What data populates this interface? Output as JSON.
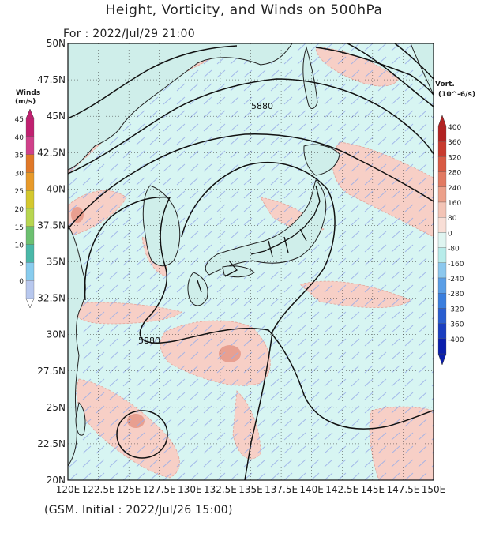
{
  "title": "Height, Vorticity, and Winds on 500hPa",
  "valid_time": "For : 2022/Jul/29 21:00",
  "initial_time": "(GSM. Initial : 2022/Jul/26 15:00)",
  "lat_labels": [
    "50N",
    "47.5N",
    "45N",
    "42.5N",
    "40N",
    "37.5N",
    "35N",
    "32.5N",
    "30N",
    "27.5N",
    "25N",
    "22.5N",
    "20N"
  ],
  "lon_labels": [
    "120E",
    "122.5E",
    "125E",
    "127.5E",
    "130E",
    "132.5E",
    "135E",
    "137.5E",
    "140E",
    "142.5E",
    "145E",
    "147.5E",
    "150E"
  ],
  "contour_labels": [
    "5880",
    "5880"
  ],
  "wind_colorbar": {
    "title_line1": "Winds",
    "title_line2": "(m/s)",
    "labels": [
      "45",
      "40",
      "35",
      "30",
      "25",
      "20",
      "15",
      "10",
      "5",
      "0"
    ],
    "colors": [
      "#c02070",
      "#d0408a",
      "#e07828",
      "#e89a2a",
      "#d4c82e",
      "#b8d650",
      "#6cc070",
      "#4ab8a8",
      "#88ccee",
      "#b8c8ee"
    ]
  },
  "vort_colorbar": {
    "title_line1": "Vort.",
    "title_line2": "(10^-6/s)",
    "labels": [
      "400",
      "360",
      "320",
      "280",
      "240",
      "160",
      "80",
      "0",
      "-80",
      "-160",
      "-240",
      "-280",
      "-320",
      "-360",
      "-400"
    ],
    "colors": [
      "#b22222",
      "#c83a2e",
      "#d85a44",
      "#e27a62",
      "#eca08a",
      "#f3c4b6",
      "#f8ded6",
      "#dff5f1",
      "#b8ecea",
      "#8cc8ee",
      "#5a9ee6",
      "#3a7ede",
      "#2a5ed0",
      "#1a3ec0",
      "#0a1eac"
    ]
  },
  "colors": {
    "sea_cyan": "#d7f5f2",
    "land_cyan": "#c9f0ec",
    "positive_vort": "#f7cfc6",
    "strong_vort": "#e89f90",
    "contour": "#111111",
    "coastline": "#222222",
    "barb_light": "#9aaee8",
    "barb_green": "#5cc08a"
  },
  "map_extent": {
    "lon_min": 120,
    "lon_max": 150,
    "lat_min": 20,
    "lat_max": 50
  }
}
